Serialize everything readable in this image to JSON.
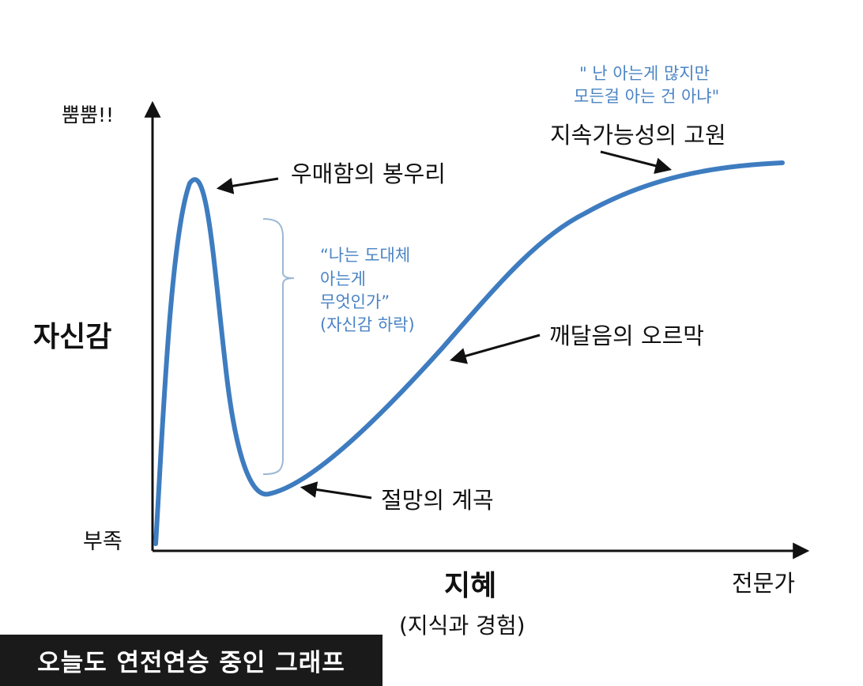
{
  "axis": {
    "y_top": "뿜뿜!!",
    "y_title": "자신감",
    "y_bottom": "부족",
    "x_title": "지혜",
    "x_subtitle": "(지식과 경험)",
    "x_end": "전문가"
  },
  "stages": {
    "peak": "우매함의 봉우리",
    "valley": "절망의 계곡",
    "slope": "깨달음의 오르막",
    "plateau": "지속가능성의 고원"
  },
  "quotes": {
    "drop": [
      "“나는 도대체",
      "아는게",
      "무엇인가”",
      "(자신감 하락)"
    ],
    "plateau": [
      "\" 난 아는게 많지만",
      "모든걸 아는 건 아냐\""
    ]
  },
  "caption": "오늘도 연전연승 중인 그래프",
  "colors": {
    "curve": "#3e7cc0",
    "quote": "#4a84c4",
    "ink": "#111111",
    "banner": "#1a1a1a"
  }
}
